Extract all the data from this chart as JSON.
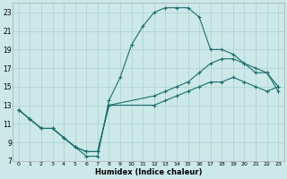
{
  "xlabel": "Humidex (Indice chaleur)",
  "bg_color": "#cce8e8",
  "grid_color": "#b0d4d4",
  "line_color": "#1a6e6e",
  "xlim": [
    -0.5,
    23.5
  ],
  "ylim": [
    7,
    24
  ],
  "yticks": [
    7,
    9,
    11,
    13,
    15,
    17,
    19,
    21,
    23
  ],
  "xticks": [
    0,
    1,
    2,
    3,
    4,
    5,
    6,
    7,
    8,
    9,
    10,
    11,
    12,
    13,
    14,
    15,
    16,
    17,
    18,
    19,
    20,
    21,
    22,
    23
  ],
  "line1_x": [
    0,
    1,
    2,
    3,
    4,
    5,
    6,
    7,
    8,
    9,
    10,
    11,
    12,
    13,
    14,
    15,
    16,
    17,
    18,
    19,
    20,
    21,
    22,
    23
  ],
  "line1_y": [
    12.5,
    11.5,
    10.5,
    10.5,
    9.5,
    8.5,
    7.5,
    7.5,
    13.5,
    16.0,
    19.5,
    21.5,
    23.0,
    23.5,
    23.5,
    23.5,
    22.5,
    19.0,
    19.0,
    18.5,
    17.5,
    16.5,
    16.5,
    14.5
  ],
  "line2_x": [
    0,
    1,
    2,
    3,
    4,
    5,
    6,
    7,
    8,
    12,
    13,
    14,
    15,
    16,
    17,
    18,
    19,
    20,
    21,
    22,
    23
  ],
  "line2_y": [
    12.5,
    11.5,
    10.5,
    10.5,
    9.5,
    8.5,
    8.0,
    8.0,
    13.0,
    14.0,
    14.5,
    15.0,
    15.5,
    16.5,
    17.5,
    18.0,
    18.0,
    17.5,
    17.0,
    16.5,
    15.0
  ],
  "line3_x": [
    0,
    1,
    2,
    3,
    4,
    5,
    6,
    7,
    8,
    12,
    13,
    14,
    15,
    16,
    17,
    18,
    19,
    20,
    21,
    22,
    23
  ],
  "line3_y": [
    12.5,
    11.5,
    10.5,
    10.5,
    9.5,
    8.5,
    8.0,
    8.0,
    13.0,
    13.0,
    13.5,
    14.0,
    14.5,
    15.0,
    15.5,
    15.5,
    16.0,
    15.5,
    15.0,
    14.5,
    15.0
  ]
}
